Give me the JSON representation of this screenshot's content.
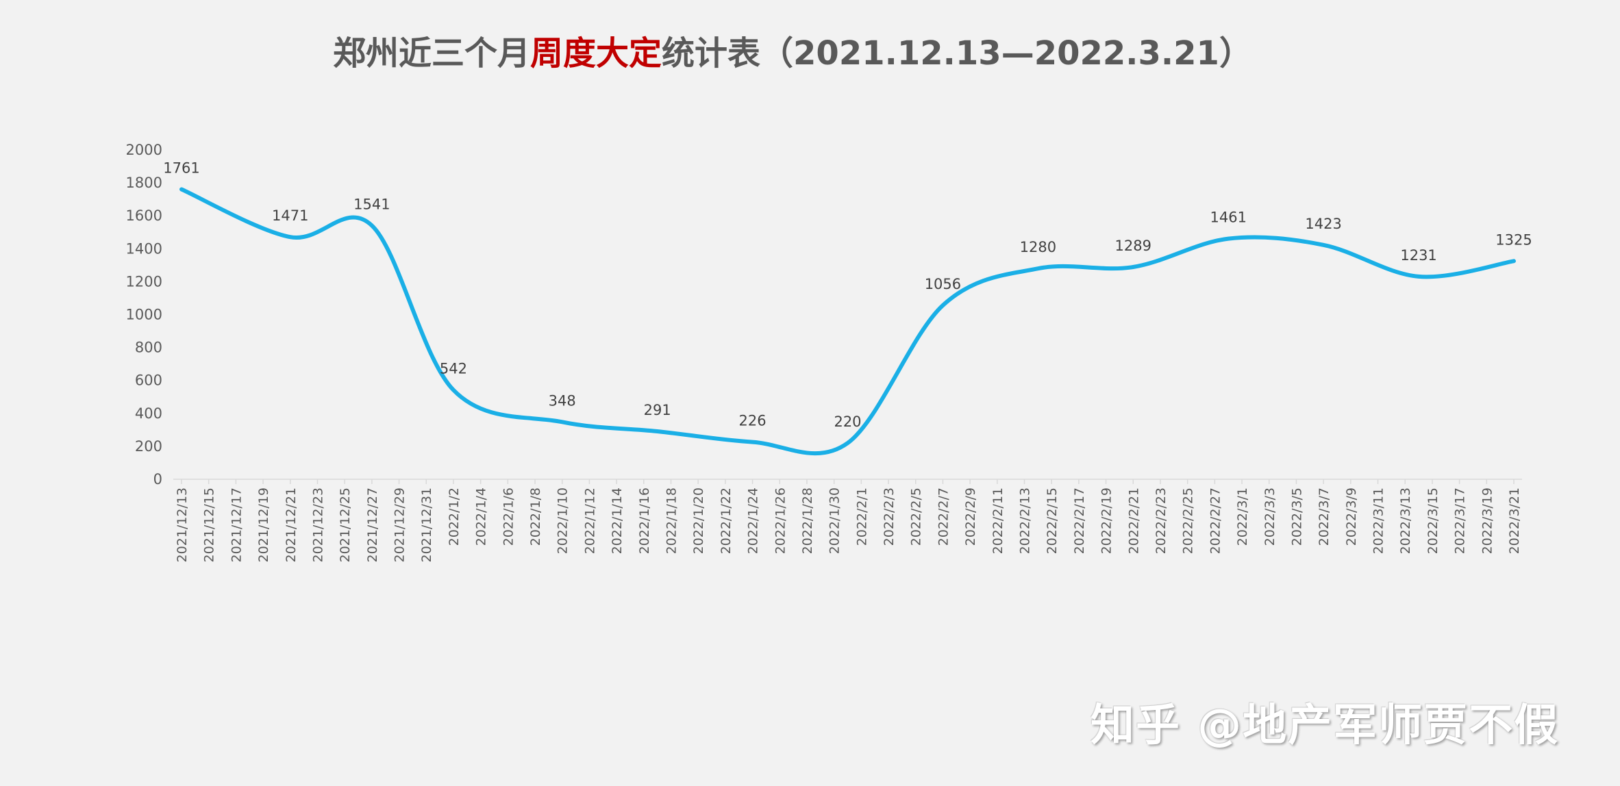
{
  "title": {
    "prefix": "郑州近三个月",
    "highlight": "周度大定",
    "suffix": "统计表（2021.12.13—2022.3.21）"
  },
  "watermark": "知乎 @地产军师贾不假",
  "colors": {
    "line": "#1aafe6",
    "title_highlight": "#c00000",
    "text": "#595959"
  },
  "chart_data": {
    "type": "line",
    "title": "郑州近三个月周度大定统计表（2021.12.13—2022.3.21）",
    "smooth": true,
    "ylim": [
      0,
      2000
    ],
    "yticks": [
      0,
      200,
      400,
      600,
      800,
      1000,
      1200,
      1400,
      1600,
      1800,
      2000
    ],
    "x_ticks": [
      "2021/12/13",
      "2021/12/15",
      "2021/12/17",
      "2021/12/19",
      "2021/12/21",
      "2021/12/23",
      "2021/12/25",
      "2021/12/27",
      "2021/12/29",
      "2021/12/31",
      "2022/1/2",
      "2022/1/4",
      "2022/1/6",
      "2022/1/8",
      "2022/1/10",
      "2022/1/12",
      "2022/1/14",
      "2022/1/16",
      "2022/1/18",
      "2022/1/20",
      "2022/1/22",
      "2022/1/24",
      "2022/1/26",
      "2022/1/28",
      "2022/1/30",
      "2022/2/1",
      "2022/2/3",
      "2022/2/5",
      "2022/2/7",
      "2022/2/9",
      "2022/2/11",
      "2022/2/13",
      "2022/2/15",
      "2022/2/17",
      "2022/2/19",
      "2022/2/21",
      "2022/2/23",
      "2022/2/25",
      "2022/2/27",
      "2022/3/1",
      "2022/3/3",
      "2022/3/5",
      "2022/3/7",
      "2022/3/9",
      "2022/3/11",
      "2022/3/13",
      "2022/3/15",
      "2022/3/17",
      "2022/3/19",
      "2022/3/21"
    ],
    "grid": false,
    "series": [
      {
        "points": [
          {
            "x": "2021/12/13",
            "y": 1761
          },
          {
            "x": "2021/12/21",
            "y": 1471
          },
          {
            "x": "2021/12/27",
            "y": 1541
          },
          {
            "x": "2022/1/2",
            "y": 542
          },
          {
            "x": "2022/1/10",
            "y": 348
          },
          {
            "x": "2022/1/17",
            "y": 291
          },
          {
            "x": "2022/1/24",
            "y": 226
          },
          {
            "x": "2022/1/31",
            "y": 220
          },
          {
            "x": "2022/2/7",
            "y": 1056
          },
          {
            "x": "2022/2/14",
            "y": 1280
          },
          {
            "x": "2022/2/21",
            "y": 1289
          },
          {
            "x": "2022/2/28",
            "y": 1461
          },
          {
            "x": "2022/3/7",
            "y": 1423
          },
          {
            "x": "2022/3/14",
            "y": 1231
          },
          {
            "x": "2022/3/21",
            "y": 1325
          }
        ]
      }
    ]
  }
}
